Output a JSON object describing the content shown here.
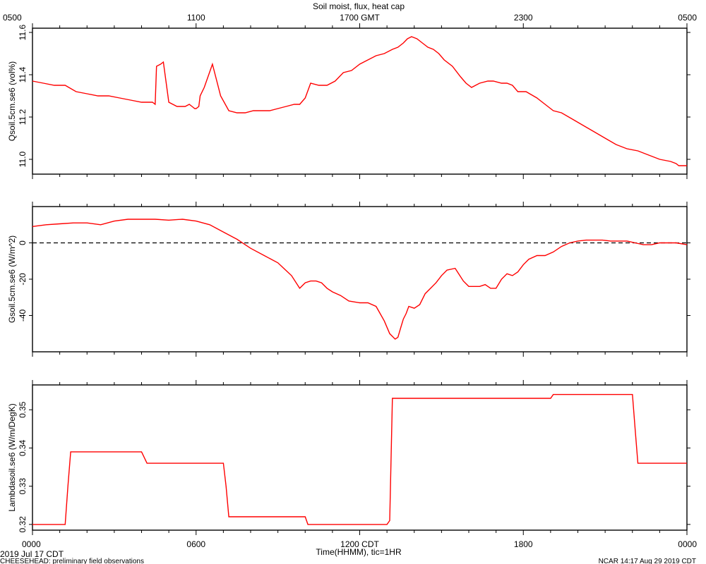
{
  "header": {
    "title": "Soil moist, flux, heat cap"
  },
  "footer": {
    "date_label": "2019 Jul 17 CDT",
    "project_note": "CHEESEHEAD: preliminary field observations",
    "xlabel": "Time(HHMM), tic=1HR",
    "credit": "NCAR 14:17 Aug 29 2019 CDT"
  },
  "chart_data": {
    "type": "line",
    "title": "Soil moist, flux, heat cap",
    "xlabel": "Time(HHMM), tic=1HR",
    "x_unit": "hours since 0000 CDT",
    "xlim": [
      0,
      24
    ],
    "top_axis": {
      "ticks": [
        0,
        6,
        12,
        18,
        24
      ],
      "labels": [
        "0500",
        "1100",
        "1700 GMT",
        "2300",
        "0500"
      ]
    },
    "bottom_axis": {
      "ticks": [
        0,
        6,
        12,
        18,
        24
      ],
      "labels": [
        "0000",
        "0600",
        "1200 CDT",
        "1800",
        "0000"
      ]
    },
    "panels": [
      {
        "ylabel": "Qsoil.5cm.se6 (vol%)",
        "ylim": [
          10.93,
          11.62
        ],
        "yticks": [
          11.0,
          11.2,
          11.4,
          11.6
        ],
        "ytick_labels": [
          "11.0",
          "11.2",
          "11.4",
          "11.6"
        ],
        "reference_line": null,
        "series": [
          {
            "x": [
              0,
              0.4,
              0.8,
              1.2,
              1.6,
              2.0,
              2.4,
              2.8,
              3.2,
              3.6,
              4.0,
              4.2,
              4.25,
              4.4,
              4.5,
              4.55,
              4.7,
              4.8,
              5.0,
              5.3,
              5.6,
              5.75,
              5.85,
              5.95,
              6.0,
              6.1,
              6.15,
              6.3,
              6.6,
              6.9,
              7.2,
              7.5,
              7.8,
              8.1,
              8.4,
              8.7,
              9.0,
              9.3,
              9.6,
              9.8,
              10.0,
              10.2,
              10.5,
              10.8,
              11.1,
              11.4,
              11.7,
              12.0,
              12.3,
              12.6,
              12.9,
              13.2,
              13.4,
              13.6,
              13.75,
              13.9,
              14.1,
              14.3,
              14.5,
              14.7,
              14.9,
              15.1,
              15.4,
              15.7,
              15.9,
              16.1,
              16.4,
              16.7,
              16.9,
              17.2,
              17.4,
              17.6,
              17.8,
              18.1,
              18.5,
              18.8,
              19.1,
              19.4,
              19.8,
              20.2,
              20.6,
              21.0,
              21.4,
              21.8,
              22.2,
              22.6,
              23.0,
              23.4,
              23.6,
              23.7,
              24.0
            ],
            "y": [
              11.37,
              11.36,
              11.35,
              11.35,
              11.32,
              11.31,
              11.3,
              11.3,
              11.29,
              11.28,
              11.27,
              11.27,
              11.27,
              11.27,
              11.26,
              11.44,
              11.45,
              11.46,
              11.27,
              11.25,
              11.25,
              11.26,
              11.25,
              11.24,
              11.24,
              11.25,
              11.3,
              11.34,
              11.45,
              11.3,
              11.23,
              11.22,
              11.22,
              11.23,
              11.23,
              11.23,
              11.24,
              11.25,
              11.26,
              11.26,
              11.29,
              11.36,
              11.35,
              11.35,
              11.37,
              11.41,
              11.42,
              11.45,
              11.47,
              11.49,
              11.5,
              11.52,
              11.53,
              11.55,
              11.57,
              11.58,
              11.57,
              11.55,
              11.53,
              11.52,
              11.5,
              11.47,
              11.44,
              11.39,
              11.36,
              11.34,
              11.36,
              11.37,
              11.37,
              11.36,
              11.36,
              11.35,
              11.32,
              11.32,
              11.29,
              11.26,
              11.23,
              11.22,
              11.19,
              11.16,
              11.13,
              11.1,
              11.07,
              11.05,
              11.04,
              11.02,
              11.0,
              10.99,
              10.98,
              10.97,
              10.97
            ],
            "color": "#ff0000"
          }
        ]
      },
      {
        "ylabel": "Gsoil.5cm.se6 (W/m^2)",
        "ylim": [
          -60,
          20
        ],
        "yticks": [
          0,
          -20,
          -40
        ],
        "ytick_labels": [
          "0",
          "-20",
          "-40"
        ],
        "reference_line": 0,
        "series": [
          {
            "x": [
              0,
              0.5,
              1.0,
              1.5,
              2.0,
              2.5,
              3.0,
              3.5,
              4.0,
              4.5,
              5.0,
              5.5,
              6.0,
              6.5,
              7.0,
              7.5,
              8.0,
              8.5,
              9.0,
              9.5,
              9.8,
              10.0,
              10.2,
              10.4,
              10.6,
              10.8,
              11.0,
              11.3,
              11.6,
              12.0,
              12.3,
              12.6,
              12.9,
              13.1,
              13.3,
              13.4,
              13.5,
              13.6,
              13.7,
              13.8,
              14.0,
              14.2,
              14.4,
              14.6,
              14.8,
              15.0,
              15.2,
              15.5,
              15.8,
              16.0,
              16.2,
              16.4,
              16.6,
              16.8,
              17.0,
              17.2,
              17.4,
              17.6,
              17.8,
              18.0,
              18.2,
              18.5,
              18.8,
              19.1,
              19.4,
              19.7,
              20.0,
              20.3,
              20.6,
              20.9,
              21.2,
              21.5,
              21.8,
              22.1,
              22.4,
              22.7,
              23.0,
              23.3,
              23.6,
              24.0
            ],
            "y": [
              9,
              10,
              10.5,
              11,
              11,
              10,
              12,
              13,
              13,
              13,
              12.5,
              13,
              12,
              10,
              6,
              2,
              -3,
              -7,
              -11,
              -18,
              -25,
              -22,
              -21,
              -21,
              -22,
              -25,
              -27,
              -29,
              -32,
              -33,
              -33,
              -35,
              -43,
              -50,
              -53,
              -52,
              -47,
              -42,
              -39,
              -35,
              -36,
              -34,
              -28,
              -25,
              -22,
              -18,
              -15,
              -14,
              -21,
              -24,
              -24,
              -24,
              -23,
              -25,
              -25,
              -20,
              -17,
              -18,
              -16,
              -12,
              -9,
              -7,
              -7,
              -5,
              -2,
              0,
              1,
              1.5,
              1.5,
              1.5,
              1,
              1,
              1,
              0,
              -1,
              -1,
              0,
              0,
              0,
              -1
            ],
            "color": "#ff0000"
          }
        ]
      },
      {
        "ylabel": "Lambdasoil.se6 (W/m/DegK)",
        "ylim": [
          0.3185,
          0.3565
        ],
        "yticks": [
          0.32,
          0.33,
          0.34,
          0.35
        ],
        "ytick_labels": [
          "0.32",
          "0.33",
          "0.34",
          "0.35"
        ],
        "reference_line": null,
        "series": [
          {
            "x": [
              0,
              1.2,
              1.3,
              1.4,
              4.0,
              4.2,
              7.0,
              7.1,
              7.2,
              10.0,
              10.1,
              13.0,
              13.1,
              13.2,
              19.0,
              19.1,
              22.0,
              22.1,
              22.2,
              24.0
            ],
            "y": [
              0.32,
              0.32,
              0.33,
              0.339,
              0.339,
              0.336,
              0.336,
              0.33,
              0.322,
              0.322,
              0.32,
              0.32,
              0.321,
              0.353,
              0.353,
              0.354,
              0.354,
              0.345,
              0.336,
              0.336
            ],
            "color": "#ff0000"
          }
        ]
      }
    ]
  }
}
